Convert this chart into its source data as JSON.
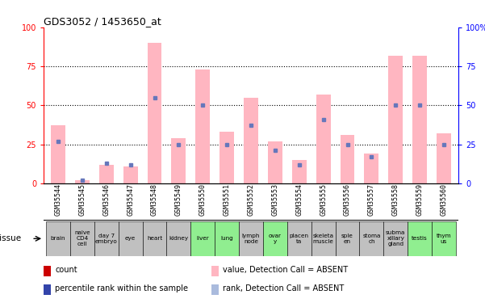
{
  "title": "GDS3052 / 1453650_at",
  "samples": [
    "GSM35544",
    "GSM35545",
    "GSM35546",
    "GSM35547",
    "GSM35548",
    "GSM35549",
    "GSM35550",
    "GSM35551",
    "GSM35552",
    "GSM35553",
    "GSM35554",
    "GSM35555",
    "GSM35556",
    "GSM35557",
    "GSM35558",
    "GSM35559",
    "GSM35560"
  ],
  "tissues": [
    "brain",
    "naive\nCD4\ncell",
    "day 7\nembryо",
    "eye",
    "heart",
    "kidney",
    "liver",
    "lung",
    "lymph\nnode",
    "ovar\ny",
    "placen\nta",
    "skeleta\nmuscle",
    "sple\nen",
    "stoma\nch",
    "subma\nxillary\ngland",
    "testis",
    "thym\nus"
  ],
  "tissue_colors": [
    "#c0c0c0",
    "#c0c0c0",
    "#c0c0c0",
    "#c0c0c0",
    "#c0c0c0",
    "#c0c0c0",
    "#90ee90",
    "#90ee90",
    "#c0c0c0",
    "#90ee90",
    "#c0c0c0",
    "#c0c0c0",
    "#c0c0c0",
    "#c0c0c0",
    "#c0c0c0",
    "#90ee90",
    "#90ee90"
  ],
  "pink_bars": [
    37,
    2,
    12,
    11,
    90,
    29,
    73,
    33,
    55,
    27,
    15,
    57,
    31,
    19,
    82,
    82,
    32
  ],
  "blue_dots": [
    27,
    2,
    13,
    12,
    55,
    25,
    50,
    25,
    37,
    21,
    12,
    41,
    25,
    17,
    50,
    50,
    25
  ],
  "ylim": [
    0,
    100
  ],
  "left_ticks": [
    0,
    25,
    50,
    75,
    100
  ],
  "right_ticks": [
    0,
    25,
    50,
    75,
    100
  ],
  "pink_color": "#FFB6C1",
  "blue_color": "#6677BB",
  "red_color": "#CC0000",
  "legend_items": [
    {
      "label": "count",
      "color": "#CC0000"
    },
    {
      "label": "percentile rank within the sample",
      "color": "#3344AA"
    },
    {
      "label": "value, Detection Call = ABSENT",
      "color": "#FFB6C1"
    },
    {
      "label": "rank, Detection Call = ABSENT",
      "color": "#AABBDD"
    }
  ]
}
